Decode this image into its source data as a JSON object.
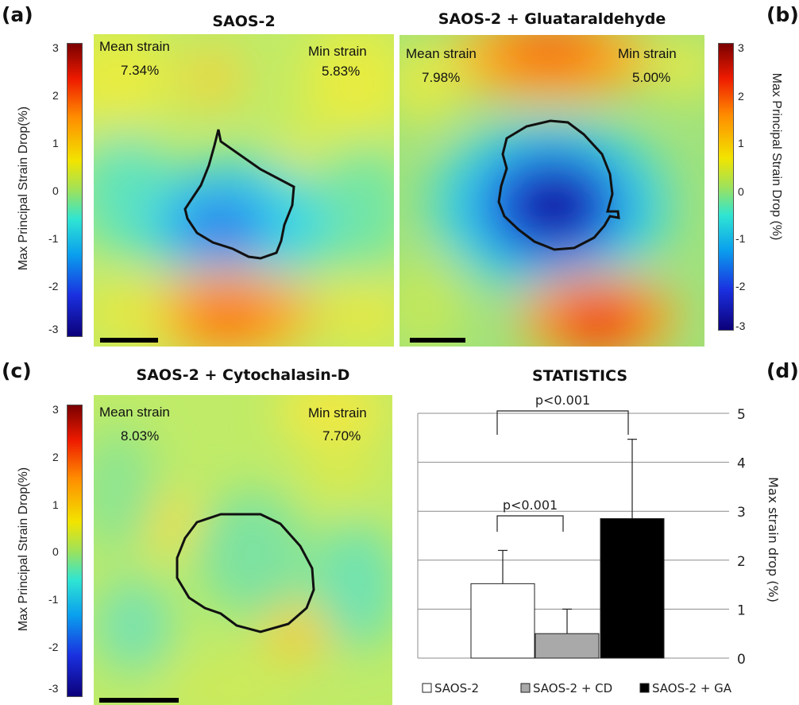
{
  "panels": {
    "a": {
      "label": "(a)",
      "title": "SAOS-2",
      "mean_label": "Mean strain",
      "mean_value": "7.34%",
      "min_label": "Min strain",
      "min_value": "5.83%",
      "colorbar_title": "Max Principal Strain Drop(%)",
      "colorbar_ticks": [
        "3",
        "2",
        "1",
        "0",
        "-1",
        "-2",
        "-3"
      ]
    },
    "b": {
      "label": "(b)",
      "title": "SAOS-2 + Gluataraldehyde",
      "mean_label": "Mean strain",
      "mean_value": "7.98%",
      "min_label": "Min strain",
      "min_value": "5.00%",
      "colorbar_title": "Max Principal Strain Drop (%)",
      "colorbar_ticks": [
        "3",
        "2",
        "1",
        "0",
        "-1",
        "-2",
        "-3"
      ]
    },
    "c": {
      "label": "(c)",
      "title": "SAOS-2 + Cytochalasin-D",
      "mean_label": "Mean strain",
      "mean_value": "8.03%",
      "min_label": "Min strain",
      "min_value": "7.70%",
      "colorbar_title": "Max Principal Strain Drop(%)",
      "colorbar_ticks": [
        "3",
        "2",
        "1",
        "0",
        "-1",
        "-2",
        "-3"
      ]
    },
    "d": {
      "label": "(d)"
    }
  },
  "chart_data": {
    "type": "bar",
    "title": "STATISTICS",
    "ylabel": "Max strain drop (%)",
    "xlabel": "",
    "ylim": [
      0,
      5
    ],
    "yticks": [
      "0",
      "1",
      "2",
      "3",
      "4",
      "5"
    ],
    "grid": true,
    "categories": [
      "SAOS-2",
      "SAOS-2 + CD",
      "SAOS-2 + GA"
    ],
    "values": [
      1.52,
      0.5,
      2.85
    ],
    "errors": [
      0.68,
      0.5,
      1.62
    ],
    "colors": [
      "#ffffff",
      "#a9a9a9",
      "#000000"
    ],
    "significance": [
      {
        "from": 0,
        "to": 1,
        "label": "p<0.001"
      },
      {
        "from": 0,
        "to": 2,
        "label": "p<0.001"
      }
    ],
    "legend_position": "bottom"
  }
}
